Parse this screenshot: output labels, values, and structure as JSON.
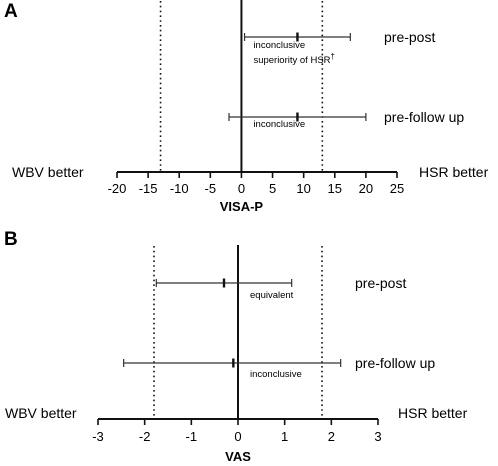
{
  "chart_data": [
    {
      "type": "forest",
      "panel_label": "A",
      "xlabel": "VISA-P",
      "xlim": [
        -20,
        25
      ],
      "xticks": [
        -20,
        -15,
        -10,
        -5,
        0,
        5,
        10,
        15,
        20,
        25
      ],
      "margin_lines": [
        -13,
        13
      ],
      "left_label": "WBV better",
      "right_label": "HSR better",
      "intervals": [
        {
          "label": "pre-post",
          "point": 9,
          "lower": 0.5,
          "upper": 17.5,
          "annotation": "inconclusive",
          "annotation2": "superiority of HSR",
          "annotation2_mark": "†"
        },
        {
          "label": "pre-follow up",
          "point": 9,
          "lower": -2,
          "upper": 20,
          "annotation": "inconclusive"
        }
      ]
    },
    {
      "type": "forest",
      "panel_label": "B",
      "xlabel": "VAS",
      "xlim": [
        -3,
        3
      ],
      "xticks": [
        -3,
        -2,
        -1,
        0,
        1,
        2,
        3
      ],
      "margin_lines": [
        -1.8,
        1.8
      ],
      "left_label": "WBV better",
      "right_label": "HSR better",
      "intervals": [
        {
          "label": "pre-post",
          "point": -0.3,
          "lower": -1.75,
          "upper": 1.15,
          "annotation": "equivalent"
        },
        {
          "label": "pre-follow up",
          "point": -0.1,
          "lower": -2.45,
          "upper": 2.2,
          "annotation": "inconclusive"
        }
      ]
    }
  ]
}
